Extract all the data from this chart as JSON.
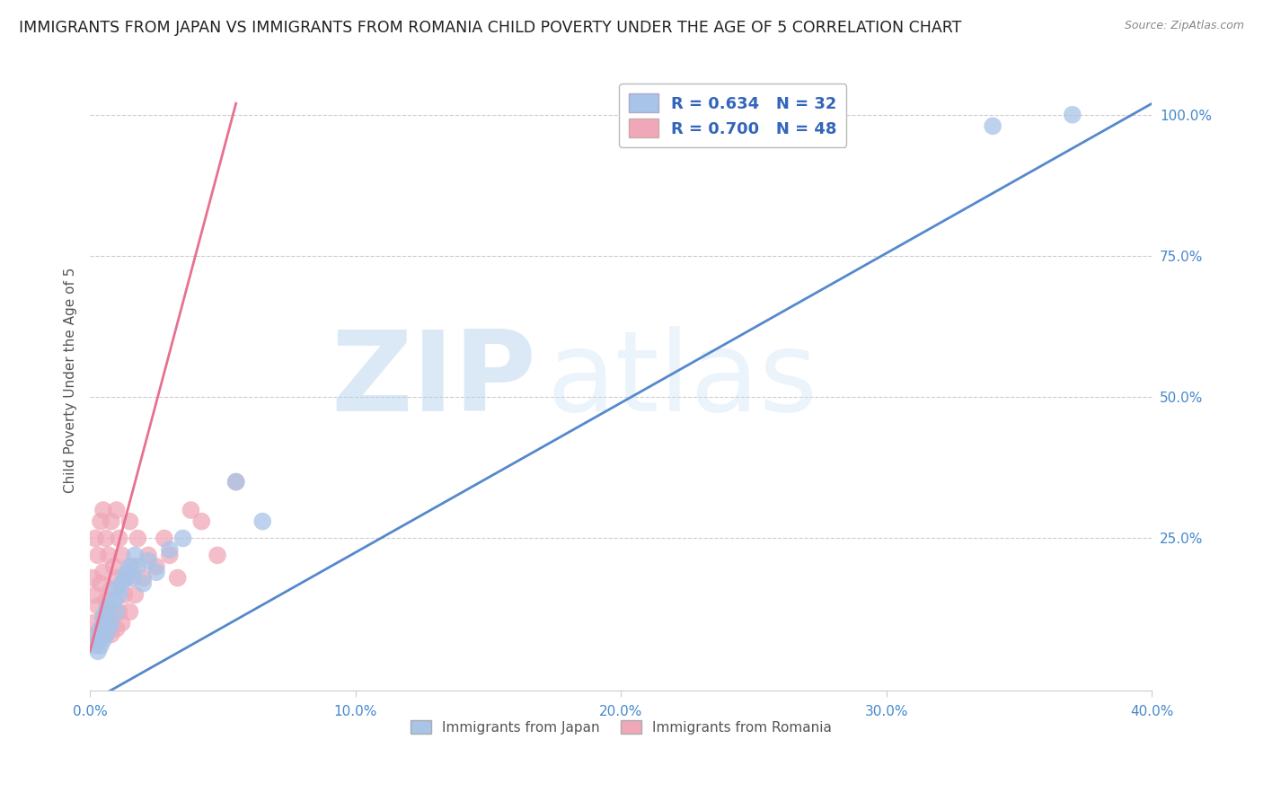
{
  "title": "IMMIGRANTS FROM JAPAN VS IMMIGRANTS FROM ROMANIA CHILD POVERTY UNDER THE AGE OF 5 CORRELATION CHART",
  "source": "Source: ZipAtlas.com",
  "ylabel": "Child Poverty Under the Age of 5",
  "xlim": [
    0.0,
    0.4
  ],
  "ylim": [
    -0.02,
    1.08
  ],
  "xticks": [
    0.0,
    0.1,
    0.2,
    0.3,
    0.4
  ],
  "xticklabels": [
    "0.0%",
    "10.0%",
    "20.0%",
    "30.0%",
    "40.0%"
  ],
  "yticks": [
    0.25,
    0.5,
    0.75,
    1.0
  ],
  "yticklabels": [
    "25.0%",
    "50.0%",
    "75.0%",
    "100.0%"
  ],
  "japan_color": "#a8c4e8",
  "romania_color": "#f0a8b8",
  "japan_line_color": "#5588cc",
  "romania_line_color": "#e87090",
  "japan_R": 0.634,
  "japan_N": 32,
  "romania_R": 0.7,
  "romania_N": 48,
  "watermark_zip": "ZIP",
  "watermark_atlas": "atlas",
  "legend_japan": "Immigrants from Japan",
  "legend_romania": "Immigrants from Romania",
  "japan_line_x0": 0.0,
  "japan_line_y0": -0.04,
  "japan_line_x1": 0.4,
  "japan_line_y1": 1.02,
  "romania_line_x0": 0.0,
  "romania_line_y0": 0.05,
  "romania_line_x1": 0.055,
  "romania_line_y1": 1.02,
  "background_color": "#ffffff",
  "grid_color": "#cccccc",
  "tick_color": "#4488cc",
  "title_color": "#222222",
  "title_fontsize": 12.5,
  "axis_label_fontsize": 11,
  "tick_fontsize": 11,
  "japan_scatter_x": [
    0.002,
    0.003,
    0.003,
    0.004,
    0.004,
    0.005,
    0.005,
    0.006,
    0.006,
    0.007,
    0.007,
    0.008,
    0.009,
    0.01,
    0.01,
    0.011,
    0.012,
    0.013,
    0.014,
    0.015,
    0.016,
    0.017,
    0.018,
    0.02,
    0.022,
    0.025,
    0.03,
    0.035,
    0.055,
    0.065,
    0.34,
    0.37
  ],
  "japan_scatter_y": [
    0.06,
    0.05,
    0.08,
    0.06,
    0.09,
    0.07,
    0.11,
    0.08,
    0.12,
    0.09,
    0.13,
    0.1,
    0.14,
    0.12,
    0.16,
    0.15,
    0.17,
    0.18,
    0.19,
    0.2,
    0.18,
    0.22,
    0.2,
    0.17,
    0.21,
    0.19,
    0.23,
    0.25,
    0.35,
    0.28,
    0.98,
    1.0
  ],
  "romania_scatter_x": [
    0.001,
    0.001,
    0.002,
    0.002,
    0.002,
    0.003,
    0.003,
    0.003,
    0.004,
    0.004,
    0.004,
    0.005,
    0.005,
    0.005,
    0.006,
    0.006,
    0.006,
    0.007,
    0.007,
    0.008,
    0.008,
    0.008,
    0.009,
    0.009,
    0.01,
    0.01,
    0.01,
    0.011,
    0.011,
    0.012,
    0.012,
    0.013,
    0.014,
    0.015,
    0.015,
    0.016,
    0.017,
    0.018,
    0.02,
    0.022,
    0.025,
    0.028,
    0.03,
    0.033,
    0.038,
    0.042,
    0.048,
    0.055
  ],
  "romania_scatter_y": [
    0.1,
    0.18,
    0.08,
    0.15,
    0.25,
    0.07,
    0.13,
    0.22,
    0.09,
    0.17,
    0.28,
    0.11,
    0.19,
    0.3,
    0.08,
    0.14,
    0.25,
    0.1,
    0.22,
    0.08,
    0.16,
    0.28,
    0.12,
    0.2,
    0.09,
    0.18,
    0.3,
    0.12,
    0.25,
    0.1,
    0.22,
    0.15,
    0.18,
    0.12,
    0.28,
    0.2,
    0.15,
    0.25,
    0.18,
    0.22,
    0.2,
    0.25,
    0.22,
    0.18,
    0.3,
    0.28,
    0.22,
    0.35
  ]
}
